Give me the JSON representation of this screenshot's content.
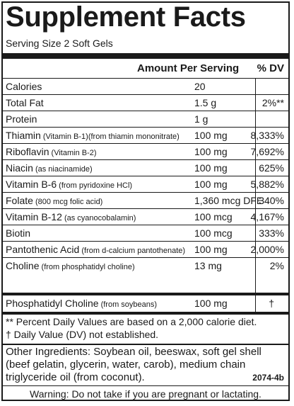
{
  "title": "Supplement Facts",
  "serving_size": "Serving Size 2 Soft Gels",
  "header": {
    "amount": "Amount Per Serving",
    "dv": "% DV"
  },
  "nutrients": [
    {
      "name": "Calories",
      "note": "",
      "amount": "20",
      "dv": ""
    },
    {
      "name": "Total Fat",
      "note": "",
      "amount": "1.5 g",
      "dv": "2%**"
    },
    {
      "name": "Protein",
      "note": "",
      "amount": "1 g",
      "dv": ""
    },
    {
      "name": "Thiamin",
      "note": " (Vitamin B-1)(from thiamin mononitrate)",
      "amount": "100 mg",
      "dv": "8,333%"
    },
    {
      "name": "Riboflavin",
      "note": " (Vitamin B-2)",
      "amount": "100 mg",
      "dv": "7,692%"
    },
    {
      "name": "Niacin",
      "note": " (as niacinamide)",
      "amount": "100 mg",
      "dv": "625%"
    },
    {
      "name": "Vitamin B-6",
      "note": " (from pyridoxine HCl)",
      "amount": "100 mg",
      "dv": "5,882%"
    },
    {
      "name": "Folate",
      "note": " (800 mcg folic acid)",
      "amount": "1,360 mcg DFE",
      "dv": "340%"
    },
    {
      "name": "Vitamin B-12",
      "note": " (as cyanocobalamin)",
      "amount": "100 mcg",
      "dv": "4,167%"
    },
    {
      "name": "Biotin",
      "note": "",
      "amount": "100 mcg",
      "dv": "333%"
    },
    {
      "name": "Pantothenic Acid",
      "note": " (from d-calcium pantothenate)",
      "amount": "100 mg",
      "dv": "2,000%"
    },
    {
      "name": "Choline",
      "note": " (from phosphatidyl choline)",
      "amount": "13 mg",
      "dv": "2%"
    }
  ],
  "last_nutrient": {
    "name": "Phosphatidyl Choline",
    "note": " (from soybeans)",
    "amount": "100 mg",
    "dv": "†"
  },
  "footnotes": [
    "** Percent Daily Values are based on a 2,000 calorie diet.",
    "† Daily Value (DV) not established."
  ],
  "ingredients": "Other Ingredients:  Soybean oil, beeswax, soft gel shell (beef gelatin, glycerin, water, carob), medium chain triglyceride oil (from coconut).",
  "code": "2074-4b",
  "warning": "Warning:  Do not take if you are pregnant or lactating."
}
